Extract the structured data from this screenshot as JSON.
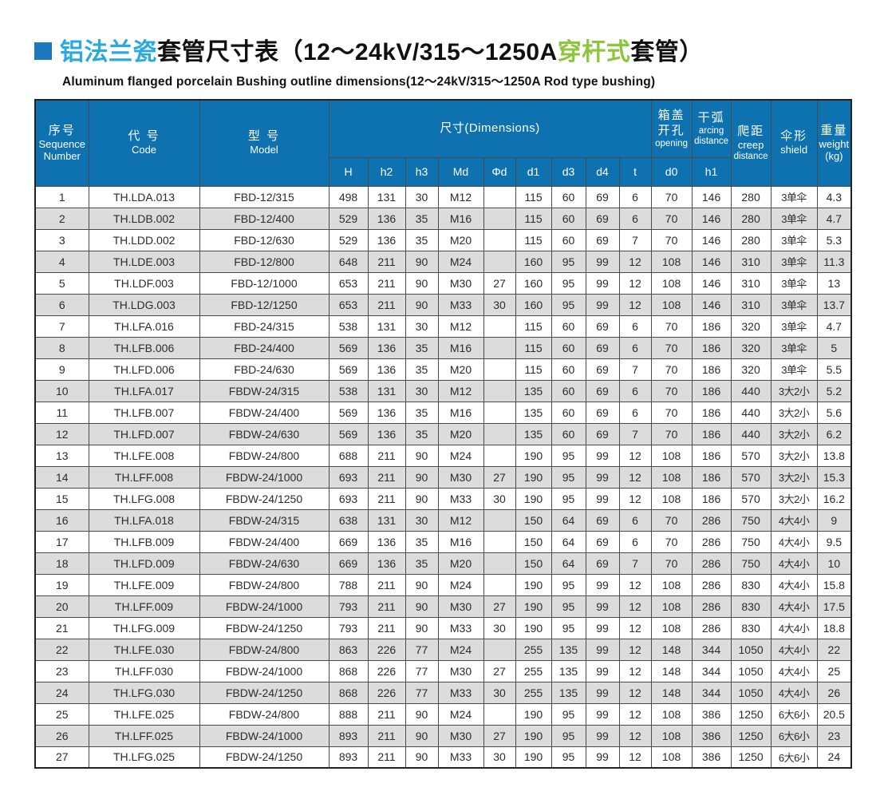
{
  "title": {
    "part_cn_blue": "铝法兰瓷",
    "part_cn_black1": "套管尺寸表（12～24kV/315～1250A",
    "part_cn_green": "穿杆式",
    "part_cn_black2": "套管）",
    "subtitle_en": "Aluminum flanged porcelain Bushing outline dimensions(12～24kV/315～1250A  Rod type bushing)"
  },
  "colors": {
    "header_blue": "#0e72b0",
    "title_cyan": "#29a9e0",
    "title_green": "#8cc63f",
    "bullet_blue": "#1b78be",
    "alt_row_gray": "#dcdcdc",
    "border_dark": "#4a4a4a"
  },
  "table": {
    "headers": {
      "seq_cn": "序号",
      "seq_en1": "Sequence",
      "seq_en2": "Number",
      "code_cn": "代 号",
      "code_en": "Code",
      "model_cn": "型 号",
      "model_en": "Model",
      "dims_label": "尺寸(Dimensions)",
      "dim_cols": [
        "H",
        "h2",
        "h3",
        "Md",
        "Φd",
        "d1",
        "d3",
        "d4",
        "t"
      ],
      "opening_cn1": "箱盖",
      "opening_cn2": "开孔",
      "opening_en": "opening",
      "opening_sub": "d0",
      "arcing_cn": "干弧",
      "arcing_en1": "arcing",
      "arcing_en2": "distance",
      "arcing_sub": "h1",
      "creep_cn": "爬距",
      "creep_en1": "creep",
      "creep_en2": "distance",
      "shield_cn": "伞形",
      "shield_en": "shield",
      "weight_cn": "重量",
      "weight_en": "weight",
      "weight_unit": "(kg)"
    },
    "rows": [
      [
        "1",
        "TH.LDA.013",
        "FBD-12/315",
        "498",
        "131",
        "30",
        "M12",
        "",
        "115",
        "60",
        "69",
        "6",
        "70",
        "146",
        "280",
        "3单伞",
        "4.3"
      ],
      [
        "2",
        "TH.LDB.002",
        "FBD-12/400",
        "529",
        "136",
        "35",
        "M16",
        "",
        "115",
        "60",
        "69",
        "6",
        "70",
        "146",
        "280",
        "3单伞",
        "4.7"
      ],
      [
        "3",
        "TH.LDD.002",
        "FBD-12/630",
        "529",
        "136",
        "35",
        "M20",
        "",
        "115",
        "60",
        "69",
        "7",
        "70",
        "146",
        "280",
        "3单伞",
        "5.3"
      ],
      [
        "4",
        "TH.LDE.003",
        "FBD-12/800",
        "648",
        "211",
        "90",
        "M24",
        "",
        "160",
        "95",
        "99",
        "12",
        "108",
        "146",
        "310",
        "3单伞",
        "11.3"
      ],
      [
        "5",
        "TH.LDF.003",
        "FBD-12/1000",
        "653",
        "211",
        "90",
        "M30",
        "27",
        "160",
        "95",
        "99",
        "12",
        "108",
        "146",
        "310",
        "3单伞",
        "13"
      ],
      [
        "6",
        "TH.LDG.003",
        "FBD-12/1250",
        "653",
        "211",
        "90",
        "M33",
        "30",
        "160",
        "95",
        "99",
        "12",
        "108",
        "146",
        "310",
        "3单伞",
        "13.7"
      ],
      [
        "7",
        "TH.LFA.016",
        "FBD-24/315",
        "538",
        "131",
        "30",
        "M12",
        "",
        "115",
        "60",
        "69",
        "6",
        "70",
        "186",
        "320",
        "3单伞",
        "4.7"
      ],
      [
        "8",
        "TH.LFB.006",
        "FBD-24/400",
        "569",
        "136",
        "35",
        "M16",
        "",
        "115",
        "60",
        "69",
        "6",
        "70",
        "186",
        "320",
        "3单伞",
        "5"
      ],
      [
        "9",
        "TH.LFD.006",
        "FBD-24/630",
        "569",
        "136",
        "35",
        "M20",
        "",
        "115",
        "60",
        "69",
        "7",
        "70",
        "186",
        "320",
        "3单伞",
        "5.5"
      ],
      [
        "10",
        "TH.LFA.017",
        "FBDW-24/315",
        "538",
        "131",
        "30",
        "M12",
        "",
        "135",
        "60",
        "69",
        "6",
        "70",
        "186",
        "440",
        "3大2小",
        "5.2"
      ],
      [
        "11",
        "TH.LFB.007",
        "FBDW-24/400",
        "569",
        "136",
        "35",
        "M16",
        "",
        "135",
        "60",
        "69",
        "6",
        "70",
        "186",
        "440",
        "3大2小",
        "5.6"
      ],
      [
        "12",
        "TH.LFD.007",
        "FBDW-24/630",
        "569",
        "136",
        "35",
        "M20",
        "",
        "135",
        "60",
        "69",
        "7",
        "70",
        "186",
        "440",
        "3大2小",
        "6.2"
      ],
      [
        "13",
        "TH.LFE.008",
        "FBDW-24/800",
        "688",
        "211",
        "90",
        "M24",
        "",
        "190",
        "95",
        "99",
        "12",
        "108",
        "186",
        "570",
        "3大2小",
        "13.8"
      ],
      [
        "14",
        "TH.LFF.008",
        "FBDW-24/1000",
        "693",
        "211",
        "90",
        "M30",
        "27",
        "190",
        "95",
        "99",
        "12",
        "108",
        "186",
        "570",
        "3大2小",
        "15.3"
      ],
      [
        "15",
        "TH.LFG.008",
        "FBDW-24/1250",
        "693",
        "211",
        "90",
        "M33",
        "30",
        "190",
        "95",
        "99",
        "12",
        "108",
        "186",
        "570",
        "3大2小",
        "16.2"
      ],
      [
        "16",
        "TH.LFA.018",
        "FBDW-24/315",
        "638",
        "131",
        "30",
        "M12",
        "",
        "150",
        "64",
        "69",
        "6",
        "70",
        "286",
        "750",
        "4大4小",
        "9"
      ],
      [
        "17",
        "TH.LFB.009",
        "FBDW-24/400",
        "669",
        "136",
        "35",
        "M16",
        "",
        "150",
        "64",
        "69",
        "6",
        "70",
        "286",
        "750",
        "4大4小",
        "9.5"
      ],
      [
        "18",
        "TH.LFD.009",
        "FBDW-24/630",
        "669",
        "136",
        "35",
        "M20",
        "",
        "150",
        "64",
        "69",
        "7",
        "70",
        "286",
        "750",
        "4大4小",
        "10"
      ],
      [
        "19",
        "TH.LFE.009",
        "FBDW-24/800",
        "788",
        "211",
        "90",
        "M24",
        "",
        "190",
        "95",
        "99",
        "12",
        "108",
        "286",
        "830",
        "4大4小",
        "15.8"
      ],
      [
        "20",
        "TH.LFF.009",
        "FBDW-24/1000",
        "793",
        "211",
        "90",
        "M30",
        "27",
        "190",
        "95",
        "99",
        "12",
        "108",
        "286",
        "830",
        "4大4小",
        "17.5"
      ],
      [
        "21",
        "TH.LFG.009",
        "FBDW-24/1250",
        "793",
        "211",
        "90",
        "M33",
        "30",
        "190",
        "95",
        "99",
        "12",
        "108",
        "286",
        "830",
        "4大4小",
        "18.8"
      ],
      [
        "22",
        "TH.LFE.030",
        "FBDW-24/800",
        "863",
        "226",
        "77",
        "M24",
        "",
        "255",
        "135",
        "99",
        "12",
        "148",
        "344",
        "1050",
        "4大4小",
        "22"
      ],
      [
        "23",
        "TH.LFF.030",
        "FBDW-24/1000",
        "868",
        "226",
        "77",
        "M30",
        "27",
        "255",
        "135",
        "99",
        "12",
        "148",
        "344",
        "1050",
        "4大4小",
        "25"
      ],
      [
        "24",
        "TH.LFG.030",
        "FBDW-24/1250",
        "868",
        "226",
        "77",
        "M33",
        "30",
        "255",
        "135",
        "99",
        "12",
        "148",
        "344",
        "1050",
        "4大4小",
        "26"
      ],
      [
        "25",
        "TH.LFE.025",
        "FBDW-24/800",
        "888",
        "211",
        "90",
        "M24",
        "",
        "190",
        "95",
        "99",
        "12",
        "108",
        "386",
        "1250",
        "6大6小",
        "20.5"
      ],
      [
        "26",
        "TH.LFF.025",
        "FBDW-24/1000",
        "893",
        "211",
        "90",
        "M30",
        "27",
        "190",
        "95",
        "99",
        "12",
        "108",
        "386",
        "1250",
        "6大6小",
        "23"
      ],
      [
        "27",
        "TH.LFG.025",
        "FBDW-24/1250",
        "893",
        "211",
        "90",
        "M33",
        "30",
        "190",
        "95",
        "99",
        "12",
        "108",
        "386",
        "1250",
        "6大6小",
        "24"
      ]
    ]
  }
}
